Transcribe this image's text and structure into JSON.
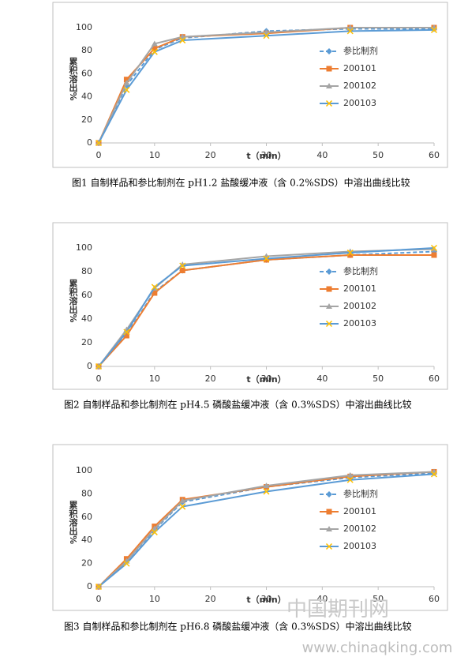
{
  "chart_data": [
    {
      "type": "line",
      "caption": "图1  自制样品和参比制剂在 pH1.2 盐酸缓冲液（含 0.2%SDS）中溶出曲线比较",
      "xlabel": "t（min）",
      "ylabel": "累积溶出%",
      "x": [
        0,
        5,
        10,
        15,
        30,
        45,
        60
      ],
      "xlim": [
        0,
        60
      ],
      "xticks": [
        0,
        10,
        20,
        30,
        40,
        50,
        60
      ],
      "ylim": [
        0,
        100
      ],
      "yticks": [
        0,
        20,
        40,
        60,
        80,
        100
      ],
      "grid": false,
      "legend": "right",
      "series": [
        {
          "name": "参比制剂",
          "color": "#5b9bd5",
          "marker": "diamond",
          "dash": true,
          "values": [
            0,
            50,
            81,
            91,
            97,
            99,
            99
          ]
        },
        {
          "name": "200101",
          "color": "#ed7d31",
          "marker": "square",
          "dash": false,
          "values": [
            0,
            55,
            82,
            92,
            95,
            100,
            100
          ]
        },
        {
          "name": "200102",
          "color": "#a5a5a5",
          "marker": "triangle",
          "dash": false,
          "values": [
            0,
            52,
            86,
            92,
            96,
            100,
            100
          ]
        },
        {
          "name": "200103",
          "color": "#5b9bd5",
          "marker_color": "#ffc000",
          "marker": "cross",
          "dash": false,
          "values": [
            0,
            46,
            79,
            89,
            93,
            97,
            98
          ]
        }
      ]
    },
    {
      "type": "line",
      "caption": "图2  自制样品和参比制剂在 pH4.5 磷酸盐缓冲液（含 0.3%SDS）中溶出曲线比较",
      "xlabel": "t（min）",
      "ylabel": "累积溶出%",
      "x": [
        0,
        5,
        10,
        15,
        30,
        45,
        60
      ],
      "xlim": [
        0,
        60
      ],
      "xticks": [
        0,
        10,
        20,
        30,
        40,
        50,
        60
      ],
      "ylim": [
        0,
        100
      ],
      "yticks": [
        0,
        20,
        40,
        60,
        80,
        100
      ],
      "grid": false,
      "legend": "right",
      "series": [
        {
          "name": "参比制剂",
          "color": "#5b9bd5",
          "marker": "diamond",
          "dash": true,
          "values": [
            0,
            27,
            63,
            81,
            90,
            94,
            97
          ]
        },
        {
          "name": "200101",
          "color": "#ed7d31",
          "marker": "square",
          "dash": false,
          "values": [
            0,
            26,
            62,
            81,
            90,
            94,
            94
          ]
        },
        {
          "name": "200102",
          "color": "#a5a5a5",
          "marker": "triangle",
          "dash": false,
          "values": [
            0,
            31,
            66,
            86,
            93,
            97,
            99
          ]
        },
        {
          "name": "200103",
          "color": "#5b9bd5",
          "marker_color": "#ffc000",
          "marker": "cross",
          "dash": false,
          "values": [
            0,
            29,
            67,
            85,
            91,
            96,
            100
          ]
        }
      ]
    },
    {
      "type": "line",
      "caption": "图3  自制样品和参比制剂在 pH6.8 磷酸盐缓冲液（含 0.3%SDS）中溶出曲线比较",
      "xlabel": "t（min）",
      "ylabel": "累积溶出%",
      "x": [
        0,
        5,
        10,
        15,
        30,
        45,
        60
      ],
      "xlim": [
        0,
        60
      ],
      "xticks": [
        0,
        10,
        20,
        30,
        40,
        50,
        60
      ],
      "ylim": [
        0,
        100
      ],
      "yticks": [
        0,
        20,
        40,
        60,
        80,
        100
      ],
      "grid": false,
      "legend": "right",
      "series": [
        {
          "name": "参比制剂",
          "color": "#5b9bd5",
          "marker": "diamond",
          "dash": true,
          "values": [
            0,
            22,
            49,
            73,
            86,
            94,
            98
          ]
        },
        {
          "name": "200101",
          "color": "#ed7d31",
          "marker": "square",
          "dash": false,
          "values": [
            0,
            24,
            52,
            75,
            86,
            95,
            99
          ]
        },
        {
          "name": "200102",
          "color": "#a5a5a5",
          "marker": "triangle",
          "dash": false,
          "values": [
            0,
            22,
            50,
            74,
            87,
            96,
            99
          ]
        },
        {
          "name": "200103",
          "color": "#5b9bd5",
          "marker_color": "#ffc000",
          "marker": "cross",
          "dash": false,
          "values": [
            0,
            20,
            47,
            69,
            82,
            92,
            97
          ]
        }
      ]
    }
  ],
  "watermark": {
    "name": "中国期刊网",
    "url": "www.chinaqking.com"
  }
}
